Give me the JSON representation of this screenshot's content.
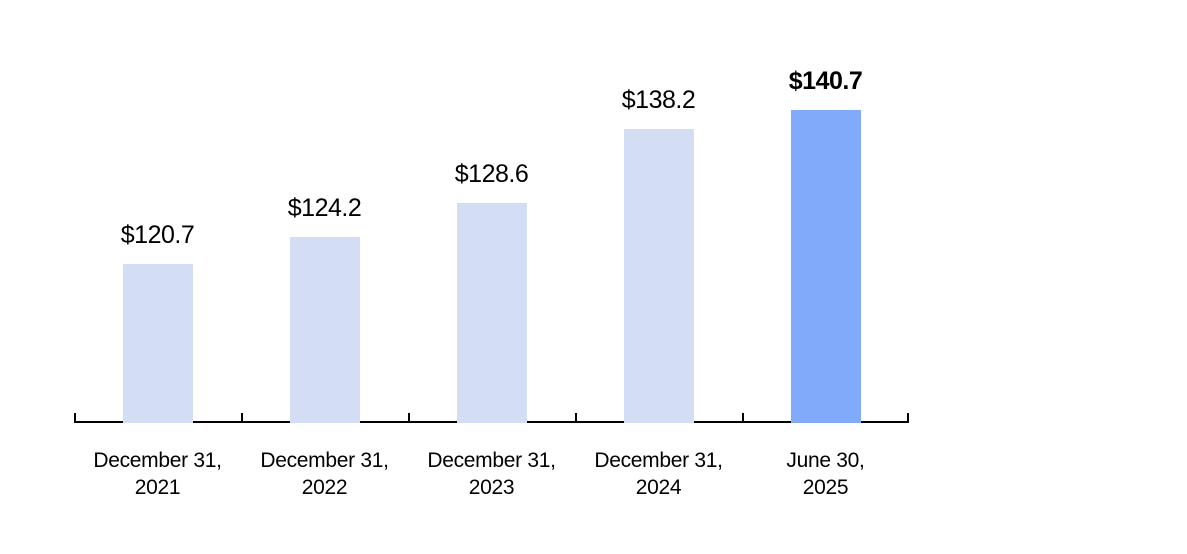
{
  "chart_data": {
    "type": "bar",
    "title": "",
    "xlabel": "",
    "ylabel": "",
    "grid": false,
    "legend": null,
    "ylim": [
      100,
      145.1
    ],
    "categories": [
      {
        "line1": "December 31,",
        "line2": "2021"
      },
      {
        "line1": "December 31,",
        "line2": "2022"
      },
      {
        "line1": "December 31,",
        "line2": "2023"
      },
      {
        "line1": "December 31,",
        "line2": "2024"
      },
      {
        "line1": "June 30,",
        "line2": "2025"
      }
    ],
    "values": [
      120.7,
      124.2,
      128.6,
      138.2,
      140.7
    ],
    "value_labels": [
      "$120.7",
      "$124.2",
      "$128.6",
      "$138.2",
      "$140.7"
    ],
    "highlight_index": 4,
    "colors": {
      "bar": "#d3def5",
      "highlight_bar": "#82aafa",
      "axis": "#000000",
      "label_text": "#000000"
    }
  }
}
